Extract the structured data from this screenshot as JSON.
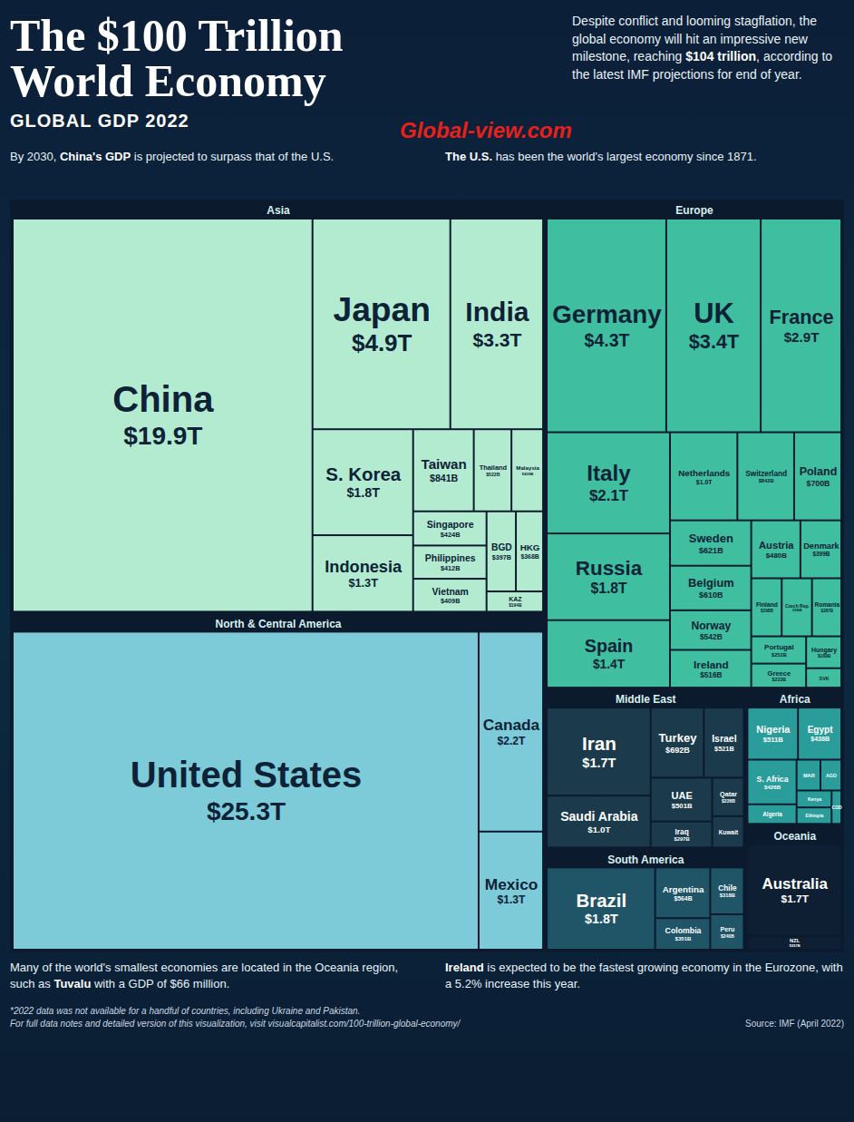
{
  "chart_data": {
    "type": "treemap",
    "title": "The $100 Trillion World Economy",
    "subtitle": "GLOBAL GDP 2022",
    "description": {
      "text": "Despite conflict and looming stagflation, the global economy will hit an impressive new milestone, reaching $104 trillion, according to the latest IMF projections for end of year.",
      "bold": "$104 trillion"
    },
    "watermark": "Global-view.com",
    "annotations": [
      {
        "text": "By 2030, China's GDP is projected to surpass that of the U.S.",
        "bold": "China's GDP"
      },
      {
        "text": "The U.S. has been the world's largest economy since 1871.",
        "bold": "The U.S."
      },
      {
        "text": "Many of the world's smallest economies are located in the Oceania region, such as Tuvalu with a GDP of $66 million.",
        "bold": "Tuvalu"
      },
      {
        "text": "Ireland is expected to be the fastest growing economy in the Eurozone, with a 5.2% increase this year.",
        "bold": "Ireland"
      }
    ],
    "footnotes": [
      "*2022 data was not available for a handful of countries, including Ukraine and Pakistan.",
      "For full data notes and detailed version of this visualization, visit visualcapitalist.com/100-trillion-global-economy/"
    ],
    "source": "Source: IMF (April 2022)",
    "data_labels": true,
    "regions": [
      {
        "name": "Asia",
        "color": "#b3ebd1"
      },
      {
        "name": "North & Central America",
        "color": "#7dcbd8"
      },
      {
        "name": "Europe",
        "color": "#3fbf9f"
      },
      {
        "name": "Middle East",
        "color": "#1b3a4b"
      },
      {
        "name": "South America",
        "color": "#1f5566"
      },
      {
        "name": "Africa",
        "color": "#2a9d9a"
      },
      {
        "name": "Oceania",
        "color": "#0e1f33"
      }
    ],
    "categories": [
      "China",
      "Japan",
      "India",
      "S. Korea",
      "Indonesia",
      "Taiwan",
      "Thailand",
      "Malaysia",
      "Singapore",
      "Philippines",
      "Vietnam",
      "BGD",
      "HKG",
      "KAZ",
      "United States",
      "Canada",
      "Mexico",
      "Germany",
      "UK",
      "France",
      "Italy",
      "Russia",
      "Spain",
      "Netherlands",
      "Switzerland",
      "Poland",
      "Sweden",
      "Belgium",
      "Norway",
      "Ireland",
      "Austria",
      "Denmark",
      "Finland",
      "Czech Rep.",
      "Romania",
      "Portugal",
      "Greece",
      "Hungary",
      "SVK",
      "Iran",
      "Saudi Arabia",
      "Turkey",
      "Israel",
      "UAE",
      "Iraq",
      "Qatar",
      "Kuwait",
      "Brazil",
      "Argentina",
      "Colombia",
      "Chile",
      "Peru",
      "Nigeria",
      "Egypt",
      "S. Africa",
      "Algeria",
      "MAR",
      "AGO",
      "Kenya",
      "Ethiopia",
      "COD",
      "Australia",
      "NZL"
    ],
    "values": [
      19900,
      4900,
      3300,
      1800,
      1300,
      841,
      522,
      439,
      424,
      412,
      409,
      397,
      368,
      194,
      25300,
      2200,
      1300,
      4300,
      3400,
      2900,
      2100,
      1800,
      1400,
      1000,
      842,
      700,
      621,
      610,
      542,
      516,
      480,
      399,
      298,
      296,
      287,
      252,
      222,
      189,
      115,
      1700,
      1000,
      692,
      521,
      501,
      297,
      226,
      184,
      1800,
      564,
      351,
      318,
      240,
      511,
      438,
      426,
      187,
      143,
      125,
      115,
      112,
      63,
      1700,
      257
    ],
    "value_labels": [
      "$19.9T",
      "$4.9T",
      "$3.3T",
      "$1.8T",
      "$1.3T",
      "$841B",
      "$522B",
      "$439B",
      "$424B",
      "$412B",
      "$409B",
      "$397B",
      "$368B",
      "$194B",
      "$25.3T",
      "$2.2T",
      "$1.3T",
      "$4.3T",
      "$3.4T",
      "$2.9T",
      "$2.1T",
      "$1.8T",
      "$1.4T",
      "$1.0T",
      "$842B",
      "$700B",
      "$621B",
      "$610B",
      "$542B",
      "$516B",
      "$480B",
      "$399B",
      "$298B",
      "$296B",
      "$287B",
      "$252B",
      "$222B",
      "$189B",
      null,
      "$1.7T",
      "$1.0T",
      "$692B",
      "$521B",
      "$501B",
      "$297B",
      "$226B",
      null,
      "$1.8T",
      "$564B",
      "$351B",
      "$318B",
      "$240B",
      "$511B",
      "$438B",
      "$426B",
      null,
      null,
      null,
      null,
      null,
      null,
      "$1.7T",
      "$257B"
    ],
    "groups": [
      "Asia",
      "Asia",
      "Asia",
      "Asia",
      "Asia",
      "Asia",
      "Asia",
      "Asia",
      "Asia",
      "Asia",
      "Asia",
      "Asia",
      "Asia",
      "Asia",
      "North & Central America",
      "North & Central America",
      "North & Central America",
      "Europe",
      "Europe",
      "Europe",
      "Europe",
      "Europe",
      "Europe",
      "Europe",
      "Europe",
      "Europe",
      "Europe",
      "Europe",
      "Europe",
      "Europe",
      "Europe",
      "Europe",
      "Europe",
      "Europe",
      "Europe",
      "Europe",
      "Europe",
      "Europe",
      "Europe",
      "Middle East",
      "Middle East",
      "Middle East",
      "Middle East",
      "Middle East",
      "Middle East",
      "Middle East",
      "Middle East",
      "South America",
      "South America",
      "South America",
      "South America",
      "South America",
      "Africa",
      "Africa",
      "Africa",
      "Africa",
      "Africa",
      "Africa",
      "Africa",
      "Africa",
      "Africa",
      "Oceania",
      "Oceania"
    ]
  }
}
